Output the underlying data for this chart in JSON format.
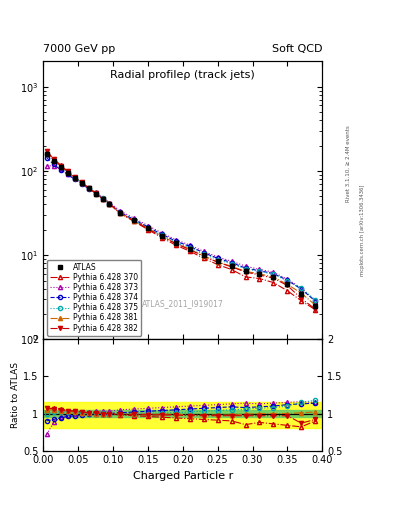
{
  "title": "Radial profileρ (track jets)",
  "top_left_label": "7000 GeV pp",
  "top_right_label": "Soft QCD",
  "right_label_main": "Rivet 3.1.10, ≥ 2.4M events",
  "right_label_sub": "mcplots.cern.ch [arXiv:1306.3436]",
  "watermark": "ATLAS_2011_I919017",
  "xlabel": "Charged Particle r",
  "ylabel_ratio": "Ratio to ATLAS",
  "xlim": [
    0.0,
    0.4
  ],
  "ylim_main": [
    1.0,
    2000.0
  ],
  "ylim_ratio": [
    0.5,
    2.0
  ],
  "x": [
    0.005,
    0.015,
    0.025,
    0.035,
    0.045,
    0.055,
    0.065,
    0.075,
    0.085,
    0.095,
    0.11,
    0.13,
    0.15,
    0.17,
    0.19,
    0.21,
    0.23,
    0.25,
    0.27,
    0.29,
    0.31,
    0.33,
    0.35,
    0.37,
    0.39
  ],
  "atlas_y": [
    160,
    130,
    110,
    95,
    82,
    72,
    62,
    54,
    47,
    41,
    32,
    26,
    21,
    17,
    14,
    12,
    10,
    8.5,
    7.5,
    6.5,
    6.0,
    5.5,
    4.5,
    3.5,
    2.5
  ],
  "atlas_yerr": [
    8,
    6,
    5,
    4,
    3.5,
    3,
    2.5,
    2,
    2,
    1.5,
    1.2,
    1.0,
    0.8,
    0.7,
    0.6,
    0.5,
    0.4,
    0.35,
    0.3,
    0.28,
    0.25,
    0.22,
    0.2,
    0.18,
    0.15
  ],
  "series": [
    {
      "label": "Pythia 6.428 370",
      "color": "#cc0000",
      "linestyle": "-.",
      "marker": "^",
      "fillstyle": "none",
      "ratio": [
        1.05,
        1.08,
        1.06,
        1.04,
        1.03,
        1.02,
        1.01,
        1.01,
        1.0,
        0.99,
        0.98,
        0.97,
        0.96,
        0.95,
        0.94,
        0.93,
        0.92,
        0.91,
        0.9,
        0.85,
        0.88,
        0.86,
        0.84,
        0.82,
        0.9
      ]
    },
    {
      "label": "Pythia 6.428 373",
      "color": "#aa00aa",
      "linestyle": ":",
      "marker": "^",
      "fillstyle": "none",
      "ratio": [
        0.72,
        0.88,
        0.95,
        0.98,
        1.0,
        1.01,
        1.02,
        1.03,
        1.03,
        1.03,
        1.05,
        1.06,
        1.07,
        1.08,
        1.09,
        1.1,
        1.11,
        1.12,
        1.13,
        1.14,
        1.13,
        1.14,
        1.15,
        1.16,
        1.15
      ]
    },
    {
      "label": "Pythia 6.428 374",
      "color": "#0000cc",
      "linestyle": "--",
      "marker": "o",
      "fillstyle": "none",
      "ratio": [
        0.9,
        0.92,
        0.94,
        0.96,
        0.97,
        0.98,
        0.99,
        1.0,
        1.0,
        1.0,
        1.01,
        1.02,
        1.03,
        1.04,
        1.05,
        1.06,
        1.07,
        1.08,
        1.09,
        1.08,
        1.09,
        1.1,
        1.12,
        1.13,
        1.14
      ]
    },
    {
      "label": "Pythia 6.428 375",
      "color": "#00aaaa",
      "linestyle": ":",
      "marker": "o",
      "fillstyle": "none",
      "ratio": [
        1.0,
        1.02,
        1.02,
        1.02,
        1.02,
        1.01,
        1.01,
        1.01,
        1.01,
        1.0,
        1.0,
        1.0,
        1.0,
        1.01,
        1.01,
        1.02,
        1.03,
        1.04,
        1.05,
        1.06,
        1.07,
        1.08,
        1.1,
        1.15,
        1.18
      ]
    },
    {
      "label": "Pythia 6.428 381",
      "color": "#cc6600",
      "linestyle": "-.",
      "marker": "^",
      "fillstyle": "full",
      "ratio": [
        1.05,
        1.05,
        1.04,
        1.03,
        1.02,
        1.01,
        1.01,
        1.0,
        1.0,
        1.0,
        0.99,
        0.99,
        0.99,
        0.99,
        0.99,
        0.98,
        0.98,
        0.98,
        0.98,
        0.99,
        1.0,
        1.0,
        1.0,
        1.01,
        1.02
      ]
    },
    {
      "label": "Pythia 6.428 382",
      "color": "#cc0000",
      "linestyle": "-.",
      "marker": "v",
      "fillstyle": "full",
      "ratio": [
        1.08,
        1.06,
        1.05,
        1.04,
        1.03,
        1.02,
        1.01,
        1.01,
        1.0,
        1.0,
        0.99,
        0.99,
        0.98,
        0.98,
        0.98,
        0.97,
        0.97,
        0.97,
        0.97,
        0.97,
        0.97,
        0.97,
        0.97,
        0.87,
        0.92
      ]
    }
  ],
  "band_green": [
    0.95,
    1.05
  ],
  "band_yellow": [
    0.8,
    1.15
  ]
}
